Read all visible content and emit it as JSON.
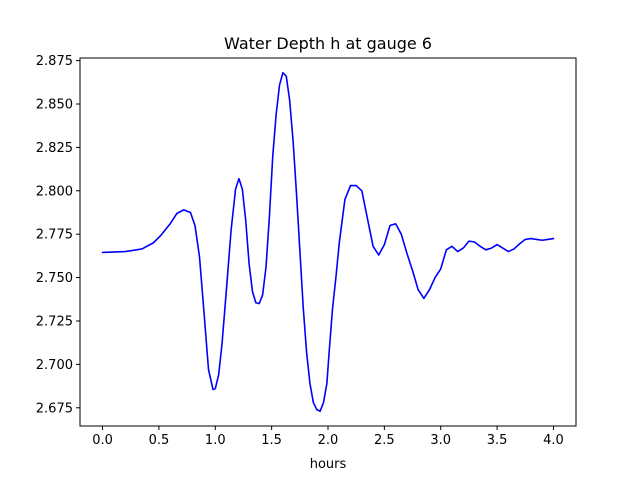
{
  "chart_data": {
    "type": "line",
    "title": "Water Depth h at gauge 6",
    "xlabel": "hours",
    "ylabel": "",
    "xlim": [
      -0.2,
      4.2
    ],
    "ylim": [
      2.6645,
      2.8765
    ],
    "x_ticks": [
      0.0,
      0.5,
      1.0,
      1.5,
      2.0,
      2.5,
      3.0,
      3.5,
      4.0
    ],
    "x_tick_labels": [
      "0.0",
      "0.5",
      "1.0",
      "1.5",
      "2.0",
      "2.5",
      "3.0",
      "3.5",
      "4.0"
    ],
    "y_ticks": [
      2.675,
      2.7,
      2.725,
      2.75,
      2.775,
      2.8,
      2.825,
      2.85,
      2.875
    ],
    "y_tick_labels": [
      "2.675",
      "2.700",
      "2.725",
      "2.750",
      "2.775",
      "2.800",
      "2.825",
      "2.850",
      "2.875"
    ],
    "grid": false,
    "series": [
      {
        "color": "#0000ff",
        "x": [
          0.0,
          0.2,
          0.35,
          0.45,
          0.52,
          0.6,
          0.66,
          0.72,
          0.78,
          0.82,
          0.86,
          0.9,
          0.94,
          0.98,
          1.0,
          1.03,
          1.06,
          1.1,
          1.14,
          1.18,
          1.21,
          1.24,
          1.27,
          1.3,
          1.33,
          1.36,
          1.39,
          1.42,
          1.45,
          1.48,
          1.51,
          1.54,
          1.57,
          1.6,
          1.63,
          1.66,
          1.69,
          1.72,
          1.75,
          1.78,
          1.81,
          1.84,
          1.87,
          1.9,
          1.93,
          1.96,
          1.99,
          2.01,
          2.04,
          2.07,
          2.1,
          2.15,
          2.2,
          2.25,
          2.3,
          2.35,
          2.4,
          2.45,
          2.5,
          2.55,
          2.6,
          2.65,
          2.7,
          2.75,
          2.8,
          2.85,
          2.9,
          2.95,
          3.0,
          3.05,
          3.1,
          3.15,
          3.2,
          3.25,
          3.3,
          3.35,
          3.4,
          3.45,
          3.5,
          3.55,
          3.6,
          3.65,
          3.7,
          3.75,
          3.8,
          3.85,
          3.9,
          3.95,
          4.0
        ],
        "values": [
          2.7645,
          2.765,
          2.7665,
          2.77,
          2.7745,
          2.781,
          2.787,
          2.789,
          2.7875,
          2.78,
          2.762,
          2.73,
          2.697,
          2.6855,
          2.686,
          2.694,
          2.712,
          2.744,
          2.777,
          2.801,
          2.807,
          2.801,
          2.783,
          2.758,
          2.742,
          2.7355,
          2.735,
          2.74,
          2.756,
          2.785,
          2.82,
          2.844,
          2.861,
          2.868,
          2.866,
          2.852,
          2.829,
          2.799,
          2.766,
          2.733,
          2.707,
          2.689,
          2.678,
          2.674,
          2.673,
          2.678,
          2.689,
          2.707,
          2.732,
          2.75,
          2.77,
          2.795,
          2.803,
          2.803,
          2.8,
          2.784,
          2.768,
          2.763,
          2.769,
          2.78,
          2.781,
          2.775,
          2.764,
          2.754,
          2.743,
          2.738,
          2.743,
          2.75,
          2.755,
          2.766,
          2.768,
          2.765,
          2.767,
          2.771,
          2.7705,
          2.768,
          2.766,
          2.767,
          2.769,
          2.767,
          2.765,
          2.7665,
          2.7695,
          2.772,
          2.7725,
          2.772,
          2.7715,
          2.772,
          2.7725
        ]
      }
    ]
  }
}
